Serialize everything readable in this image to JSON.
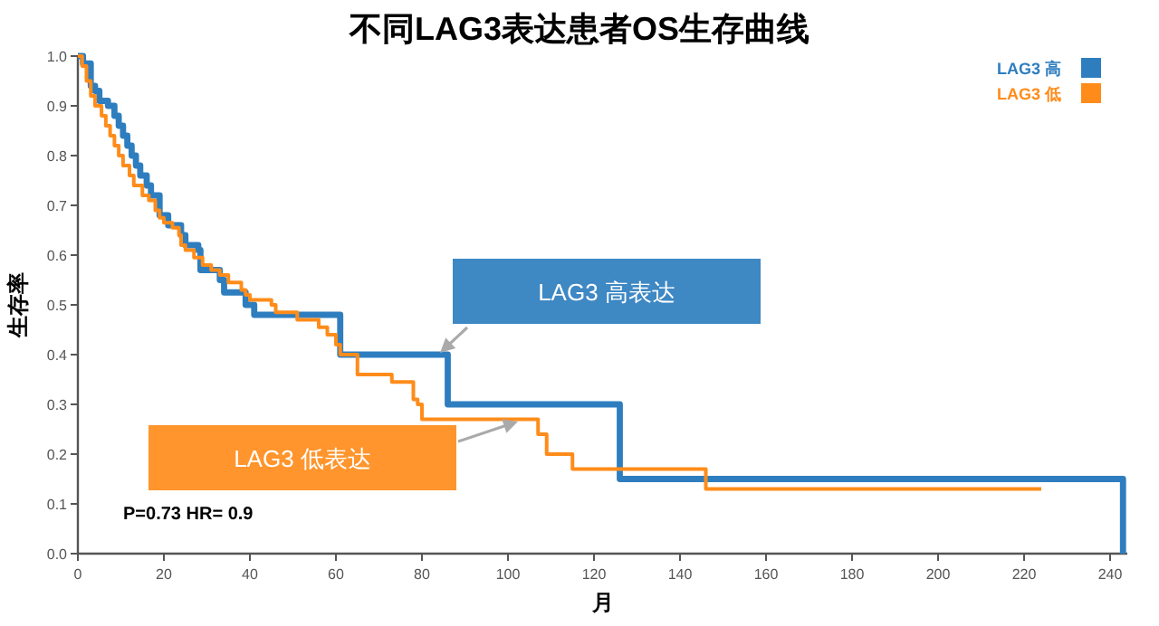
{
  "chart_data": {
    "type": "step",
    "title": "不同LAG3表达患者OS生存曲线",
    "xlabel": "月",
    "ylabel": "生存率",
    "xlim": [
      0,
      244
    ],
    "ylim": [
      0,
      1
    ],
    "xticks": [
      0,
      20,
      40,
      60,
      80,
      100,
      120,
      140,
      160,
      180,
      200,
      220,
      240
    ],
    "yticks": [
      {
        "value": 0,
        "label": "0.0"
      },
      {
        "value": 0.1,
        "label": "0.1"
      },
      {
        "value": 0.2,
        "label": "0.2"
      },
      {
        "value": 0.3,
        "label": "0.3"
      },
      {
        "value": 0.4,
        "label": "0.4"
      },
      {
        "value": 0.5,
        "label": "0.5"
      },
      {
        "value": 0.6,
        "label": "0.6"
      },
      {
        "value": 0.7,
        "label": "0.7"
      },
      {
        "value": 0.8,
        "label": "0.8"
      },
      {
        "value": 0.9,
        "label": "0.9"
      },
      {
        "value": 1,
        "label": "1.0"
      }
    ],
    "grid": false,
    "legend": "top right",
    "marker": "none",
    "line_style": "solid",
    "series": [
      {
        "name": "LAG3 高",
        "color": "#2e7ebf",
        "x": [
          0,
          1.2,
          3,
          4,
          5,
          7,
          8.5,
          9.5,
          10.5,
          11.5,
          12.5,
          13.5,
          14.5,
          16,
          17,
          19,
          21,
          24,
          25,
          28,
          28.5,
          33,
          34,
          39,
          41,
          61,
          86,
          126,
          243,
          243
        ],
        "values": [
          1,
          0.985,
          0.94,
          0.93,
          0.91,
          0.9,
          0.88,
          0.86,
          0.84,
          0.82,
          0.8,
          0.78,
          0.76,
          0.74,
          0.72,
          0.68,
          0.66,
          0.64,
          0.62,
          0.61,
          0.57,
          0.55,
          0.525,
          0.5,
          0.48,
          0.4,
          0.3,
          0.15,
          0.15,
          0
        ]
      },
      {
        "name": "LAG3 低",
        "color": "#ff8c1a",
        "x": [
          0,
          1,
          2,
          3,
          4,
          5.5,
          6.5,
          7.5,
          8.5,
          9.5,
          10.5,
          12,
          13,
          15,
          16.5,
          18,
          19,
          20,
          22,
          23.5,
          24,
          25,
          27,
          29,
          31,
          33,
          35,
          38,
          39,
          40,
          45,
          46,
          51,
          56,
          58,
          60,
          61,
          65,
          73,
          78,
          79,
          80,
          107,
          109,
          115,
          146,
          224
        ],
        "values": [
          1,
          0.98,
          0.95,
          0.92,
          0.9,
          0.88,
          0.86,
          0.84,
          0.82,
          0.8,
          0.78,
          0.76,
          0.74,
          0.72,
          0.71,
          0.69,
          0.675,
          0.665,
          0.655,
          0.64,
          0.62,
          0.61,
          0.595,
          0.58,
          0.57,
          0.56,
          0.545,
          0.53,
          0.52,
          0.51,
          0.5,
          0.485,
          0.47,
          0.455,
          0.44,
          0.42,
          0.4,
          0.36,
          0.345,
          0.31,
          0.3,
          0.27,
          0.24,
          0.2,
          0.17,
          0.13,
          0.13
        ]
      }
    ],
    "annotations": [
      "LAG3 高表达",
      "LAG3 低表达",
      "P=0.73 HR= 0.9"
    ]
  }
}
